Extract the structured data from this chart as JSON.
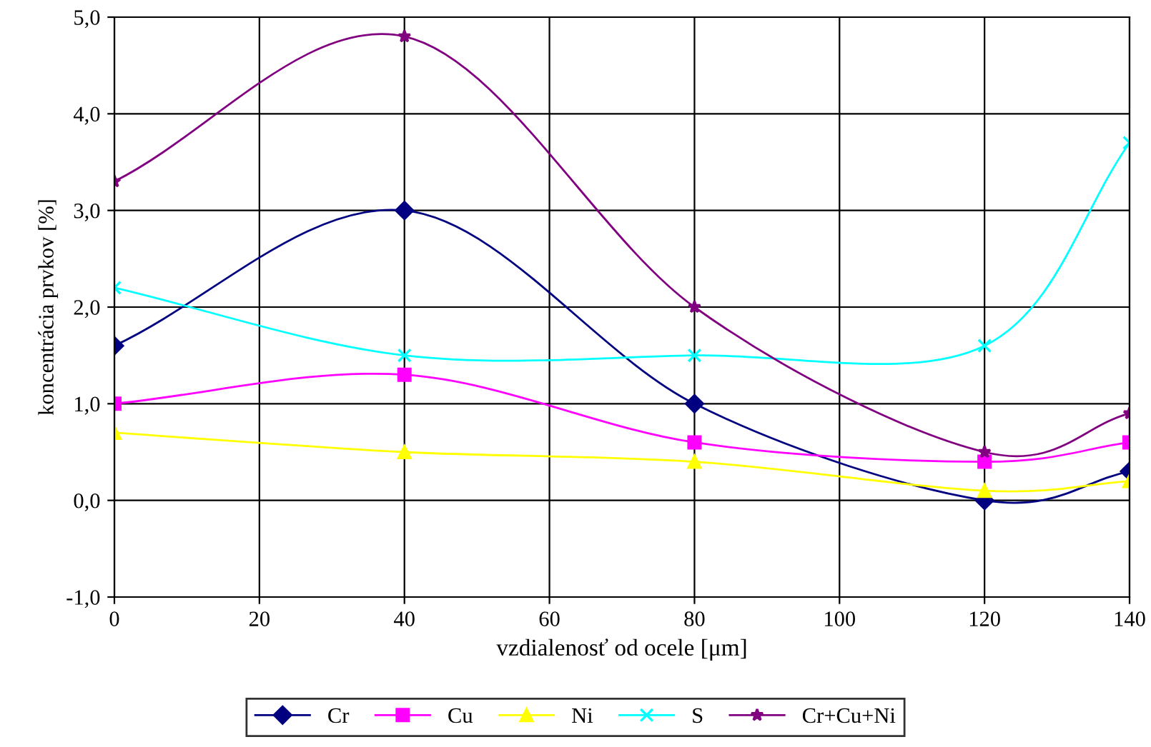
{
  "chart_data": {
    "type": "line",
    "xlabel": "vzdialenosť od ocele [μm]",
    "ylabel": "koncentrácia prvkov [%]",
    "x": [
      0,
      40,
      80,
      120,
      140
    ],
    "series": [
      {
        "name": "Cr",
        "color": "#000080",
        "marker": "diamond",
        "values": [
          1.6,
          3.0,
          1.0,
          0.0,
          0.3
        ]
      },
      {
        "name": "Cu",
        "color": "#ff00ff",
        "marker": "square",
        "values": [
          1.0,
          1.3,
          0.6,
          0.4,
          0.6
        ]
      },
      {
        "name": "Ni",
        "color": "#ffff00",
        "marker": "triangle",
        "values": [
          0.7,
          0.5,
          0.4,
          0.1,
          0.2
        ]
      },
      {
        "name": "S",
        "color": "#00ffff",
        "marker": "cross",
        "values": [
          2.2,
          1.5,
          1.5,
          1.6,
          3.7
        ]
      },
      {
        "name": "Cr+Cu+Ni",
        "color": "#800080",
        "marker": "star",
        "values": [
          3.3,
          4.8,
          2.0,
          0.5,
          0.9
        ]
      }
    ],
    "xlim": [
      0,
      140
    ],
    "xticks": [
      0,
      20,
      40,
      60,
      80,
      100,
      120,
      140
    ],
    "ylim": [
      -1,
      5
    ],
    "yticks": [
      {
        "value": -1,
        "label": "-1,0"
      },
      {
        "value": 0,
        "label": "0,0"
      },
      {
        "value": 1,
        "label": "1,0"
      },
      {
        "value": 2,
        "label": "2,0"
      },
      {
        "value": 3,
        "label": "3,0"
      },
      {
        "value": 4,
        "label": "4,0"
      },
      {
        "value": 5,
        "label": "5,0"
      }
    ],
    "grid": true,
    "legend": "bottom",
    "line_style": "solid"
  }
}
